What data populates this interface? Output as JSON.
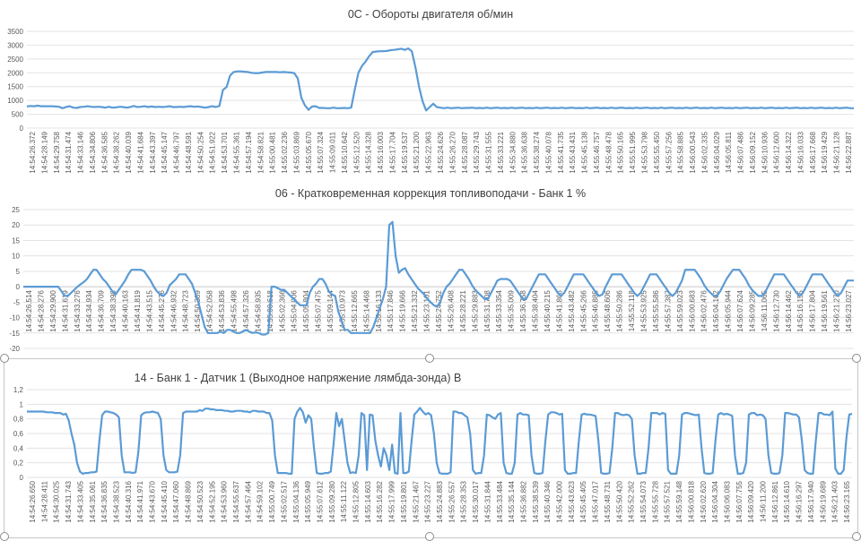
{
  "chart_data": [
    {
      "type": "line",
      "title": "0C - Обороты двигателя об/мин",
      "xlabel": "",
      "ylabel": "",
      "ylim": [
        0,
        3500
      ],
      "yticks": [
        0,
        500,
        1000,
        1500,
        2000,
        2500,
        3000,
        3500
      ],
      "grid": true,
      "color": "#5b9bd5",
      "x_tick_labels": [
        "14:54:26.372",
        "14:54:28.149",
        "14:54:29.758",
        "14:54:31.474",
        "14:54:33.146",
        "14:54:34.806",
        "14:54:36.585",
        "14:54:38.262",
        "14:54:40.039",
        "14:54:41.684",
        "14:54:43.397",
        "14:54:45.147",
        "14:54:46.797",
        "14:54:48.591",
        "14:54:50.254",
        "14:54:51.922",
        "14:54:53.701",
        "14:54:55.361",
        "14:54:57.194",
        "14:54:58.821",
        "14:55:00.481",
        "14:55:02.236",
        "14:55:03.869",
        "14:55:05.670",
        "14:55:07.324",
        "14:55:09.011",
        "14:55:10.642",
        "14:55:12.520",
        "14:55:14.328",
        "14:55:16.003",
        "14:55:17.704",
        "14:55:19.537",
        "14:55:21.200",
        "14:55:22.963",
        "14:55:24.626",
        "14:55:26.270",
        "14:55:28.087",
        "14:55:29.743",
        "14:55:31.555",
        "14:55:33.221",
        "14:55:34.880",
        "14:55:36.638",
        "14:55:38.274",
        "14:55:40.078",
        "14:55:41.735",
        "14:55:43.431",
        "14:55:45.138",
        "14:55:46.757",
        "14:55:48.478",
        "14:55:50.165",
        "14:55:51.995",
        "14:55:53.798",
        "14:55:55.450",
        "14:55:57.256",
        "14:55:58.885",
        "14:56:00.543",
        "14:56:02.335",
        "14:56:04.029",
        "14:56:05.811",
        "14:56:07.486",
        "14:56:09.152",
        "14:56:10.936",
        "14:56:12.600",
        "14:56:14.322",
        "14:56:16.033",
        "14:56:17.668",
        "14:56:19.429",
        "14:56:21.128",
        "14:56:22.887"
      ],
      "values": [
        780,
        800,
        790,
        810,
        790,
        790,
        790,
        790,
        780,
        770,
        720,
        760,
        790,
        740,
        730,
        760,
        770,
        790,
        770,
        760,
        770,
        760,
        740,
        770,
        740,
        750,
        770,
        760,
        740,
        760,
        800,
        760,
        770,
        790,
        760,
        780,
        760,
        770,
        760,
        770,
        790,
        760,
        760,
        770,
        760,
        780,
        790,
        770,
        780,
        760,
        740,
        760,
        790,
        760,
        800,
        1380,
        1480,
        1900,
        2030,
        2050,
        2050,
        2040,
        2030,
        2000,
        1990,
        1990,
        2010,
        2030,
        2030,
        2030,
        2030,
        2020,
        2030,
        2020,
        2010,
        1990,
        1800,
        1100,
        820,
        660,
        780,
        790,
        730,
        730,
        720,
        720,
        740,
        720,
        720,
        730,
        720,
        740,
        1400,
        2000,
        2250,
        2400,
        2600,
        2750,
        2770,
        2780,
        2780,
        2790,
        2820,
        2830,
        2850,
        2870,
        2830,
        2880,
        2780,
        2200,
        1500,
        980,
        640,
        760,
        880,
        760,
        740,
        720,
        740,
        720,
        730,
        740,
        720,
        730,
        730,
        740,
        720,
        730,
        720,
        740,
        720,
        730,
        740,
        720,
        730,
        720,
        740,
        720,
        730,
        740,
        720,
        730,
        720,
        740,
        720,
        730,
        740,
        720,
        730,
        720,
        740,
        720,
        730,
        740,
        720,
        730,
        720,
        740,
        720,
        730,
        740,
        720,
        730,
        720,
        740,
        720,
        730,
        740,
        720,
        730,
        720,
        740,
        720,
        730,
        740,
        720,
        730,
        720,
        740,
        720,
        730,
        740,
        720,
        730,
        720,
        740,
        720,
        730,
        740,
        720,
        730,
        720,
        740,
        720,
        730,
        740,
        720,
        730,
        720,
        740,
        720,
        730,
        740,
        720,
        730,
        720,
        740,
        720,
        730,
        740,
        720,
        730,
        720,
        740,
        720,
        730,
        740,
        720,
        730,
        720,
        740,
        720,
        730,
        740,
        720,
        730,
        720,
        740,
        720,
        730,
        740,
        720,
        720
      ]
    },
    {
      "type": "line",
      "title": "06 - Кратковременная коррекция топливоподачи - Банк 1 %",
      "xlabel": "",
      "ylabel": "",
      "ylim": [
        -20,
        25
      ],
      "yticks": [
        -20,
        -15,
        -10,
        -5,
        0,
        5,
        10,
        15,
        20,
        25
      ],
      "grid": true,
      "color": "#5b9bd5",
      "x_tick_labels": [
        "14:54:26.514",
        "14:54:28.276",
        "14:54:29.900",
        "14:54:31.619",
        "14:54:33.276",
        "14:54:34.934",
        "14:54:36.709",
        "14:54:38.398",
        "14:54:40.163",
        "14:54:41.819",
        "14:54:43.515",
        "14:54:45.276",
        "14:54:46.932",
        "14:54:48.723",
        "14:54:50.389",
        "14:54:52.058",
        "14:54:53.836",
        "14:54:55.498",
        "14:54:57.326",
        "14:54:58.935",
        "14:55:00.618",
        "14:55:02.366",
        "14:55:04.006",
        "14:55:05.804",
        "14:55:07.475",
        "14:55:09.144",
        "14:55:10.973",
        "14:55:12.665",
        "14:55:14.468",
        "14:55:16.133",
        "14:55:17.846",
        "14:55:19.666",
        "14:55:21.332",
        "14:55:23.101",
        "14:55:24.752",
        "14:55:26.408",
        "14:55:28.221",
        "14:55:29.883",
        "14:55:31.708",
        "14:55:33.354",
        "14:55:35.009",
        "14:55:36.758",
        "14:55:38.404",
        "14:55:40.215",
        "14:55:41.866",
        "14:55:43.482",
        "14:55:45.266",
        "14:55:46.885",
        "14:55:48.606",
        "14:55:50.286",
        "14:55:52.118",
        "14:55:53.925",
        "14:55:55.586",
        "14:55:57.387",
        "14:55:59.023",
        "14:56:00.683",
        "14:56:02.476",
        "14:56:04.162",
        "14:56:05.944",
        "14:56:07.624",
        "14:56:09.285",
        "14:56:11.065",
        "14:56:12.730",
        "14:56:14.462",
        "14:56:16.155",
        "14:56:17.804",
        "14:56:19.561",
        "14:56:21.270",
        "14:56:23.027"
      ],
      "values": [
        0,
        0,
        0,
        0,
        0,
        0,
        0,
        0,
        0,
        0,
        0,
        0,
        -1.5,
        -3,
        -3,
        -2,
        -1,
        0,
        0.8,
        1.5,
        2.5,
        4,
        5.5,
        5.5,
        4,
        2.5,
        1.5,
        0,
        -1.5,
        -2.5,
        -1,
        0.5,
        2,
        4,
        5.5,
        5.5,
        5.5,
        5.5,
        5,
        3.5,
        2,
        0,
        -1.5,
        -2.5,
        -3,
        -2,
        0.5,
        1.5,
        2.5,
        4,
        4,
        4,
        2.5,
        1,
        -2,
        -5,
        -9,
        -13,
        -15,
        -15,
        -15,
        -15,
        -14.5,
        -15,
        -14,
        -14,
        -14.5,
        -15,
        -15,
        -14.5,
        -14,
        -14.5,
        -15,
        -14.8,
        -15,
        -15.5,
        -15.5,
        -15,
        0,
        0,
        -0.5,
        -1,
        -1,
        -2,
        -3,
        -4,
        -5,
        -6,
        -6,
        -6,
        -2,
        0,
        1,
        2.5,
        2.5,
        1,
        -1.5,
        -2.5,
        -3,
        -8,
        -11,
        -14,
        -14,
        -15,
        -15,
        -15,
        -15,
        -15,
        -15,
        -15,
        -13,
        -10,
        -7,
        -4,
        0,
        20,
        21,
        10,
        4.5,
        5.5,
        6,
        4,
        2.5,
        1,
        -0.5,
        -1.5,
        -2.5,
        -4,
        -5,
        -6,
        -6.5,
        -5,
        -2,
        0,
        1,
        2.5,
        4,
        5.5,
        5.5,
        4,
        2.5,
        0.5,
        -1,
        -2,
        -3,
        -4,
        -4,
        -2,
        0,
        2,
        2.5,
        2.5,
        2.5,
        2,
        0.5,
        -1,
        -2.5,
        -4,
        -4,
        -2,
        0,
        2,
        4,
        4,
        4,
        2.5,
        1,
        -0.5,
        -2,
        -3,
        -2,
        0,
        2,
        4,
        4,
        4,
        4,
        2.5,
        1,
        -0.5,
        -2,
        -3,
        -2.5,
        0,
        2,
        4,
        4,
        4,
        4,
        2.5,
        1,
        -0.5,
        -2,
        -3,
        -2,
        0,
        2,
        4,
        4,
        4,
        2.5,
        1,
        -0.5,
        -2,
        -3,
        -2,
        0,
        2,
        5.5,
        5.5,
        5.5,
        5.5,
        4,
        2.5,
        0.5,
        -1,
        -2,
        -3,
        -3,
        -1.5,
        0.5,
        2.5,
        4,
        5.5,
        5.5,
        5.5,
        4,
        2.5,
        0.5,
        -1,
        -2,
        -3,
        -3,
        -2,
        0,
        2,
        4,
        4,
        4,
        4,
        2.5,
        1,
        -0.5,
        -2,
        -3,
        -2,
        0,
        2,
        4,
        4,
        4,
        4,
        2.5,
        1,
        -0.5,
        -2,
        -3,
        -2,
        0,
        2,
        2,
        2
      ]
    },
    {
      "type": "line",
      "title": "14 - Банк 1 - Датчик 1 (Выходное напряжение лямбда-зонда) В",
      "xlabel": "",
      "ylabel": "",
      "ylim": [
        0,
        1.2
      ],
      "yticks": [
        "0",
        "0,2",
        "0,4",
        "0,6",
        "0,8",
        "1",
        "1,2"
      ],
      "grid": true,
      "color": "#5b9bd5",
      "x_tick_labels": [
        "14:54:26.650",
        "14:54:28.411",
        "14:54:30.025",
        "14:54:31.743",
        "14:54:33.405",
        "14:54:35.061",
        "14:54:36.835",
        "14:54:38.523",
        "14:54:40.316",
        "14:54:41.971",
        "14:54:43.670",
        "14:54:45.410",
        "14:54:47.060",
        "14:54:48.869",
        "14:54:50.523",
        "14:54:52.195",
        "14:54:53.960",
        "14:54:55.637",
        "14:54:57.464",
        "14:54:59.102",
        "14:55:00.749",
        "14:55:02.517",
        "14:55:04.136",
        "14:55:05.949",
        "14:55:07.612",
        "14:55:09.280",
        "14:55:11.122",
        "14:55:12.805",
        "14:55:14.603",
        "14:55:16.282",
        "14:55:17.999",
        "14:55:19.801",
        "14:55:21.467",
        "14:55:23.227",
        "14:55:24.883",
        "14:55:26.557",
        "14:55:28.353",
        "14:55:30.017",
        "14:55:31.844",
        "14:55:33.484",
        "14:55:35.144",
        "14:55:36.882",
        "14:55:38.539",
        "14:55:40.346",
        "14:55:42.000",
        "14:55:43.623",
        "14:55:45.405",
        "14:55:47.017",
        "14:55:48.731",
        "14:55:50.420",
        "14:55:52.262",
        "14:55:54.073",
        "14:55:55.728",
        "14:55:57.521",
        "14:55:59.148",
        "14:56:00.818",
        "14:56:02.620",
        "14:56:04.304",
        "14:56:06.083",
        "14:56:07.755",
        "14:56:09.420",
        "14:56:11.200",
        "14:56:12.861",
        "14:56:14.610",
        "14:56:16.297",
        "14:56:17.940",
        "14:56:19.689",
        "14:56:21.403",
        "14:56:23.165"
      ],
      "values": [
        0.9,
        0.9,
        0.9,
        0.9,
        0.9,
        0.9,
        0.9,
        0.89,
        0.89,
        0.89,
        0.88,
        0.88,
        0.88,
        0.86,
        0.87,
        0.78,
        0.6,
        0.45,
        0.2,
        0.08,
        0.05,
        0.06,
        0.06,
        0.07,
        0.07,
        0.08,
        0.5,
        0.85,
        0.9,
        0.9,
        0.89,
        0.88,
        0.86,
        0.82,
        0.3,
        0.07,
        0.07,
        0.07,
        0.06,
        0.07,
        0.35,
        0.85,
        0.88,
        0.89,
        0.89,
        0.9,
        0.89,
        0.88,
        0.8,
        0.3,
        0.1,
        0.07,
        0.07,
        0.07,
        0.08,
        0.3,
        0.88,
        0.9,
        0.9,
        0.9,
        0.9,
        0.9,
        0.92,
        0.91,
        0.94,
        0.94,
        0.93,
        0.93,
        0.92,
        0.92,
        0.92,
        0.91,
        0.91,
        0.9,
        0.9,
        0.91,
        0.91,
        0.91,
        0.9,
        0.9,
        0.89,
        0.91,
        0.91,
        0.9,
        0.9,
        0.9,
        0.88,
        0.88,
        0.78,
        0.3,
        0.06,
        0.06,
        0.06,
        0.06,
        0.05,
        0.05,
        0.8,
        0.9,
        0.95,
        0.89,
        0.75,
        0.85,
        0.8,
        0.4,
        0.06,
        0.05,
        0.05,
        0.06,
        0.06,
        0.08,
        0.45,
        0.88,
        0.7,
        0.8,
        0.5,
        0.2,
        0.06,
        0.07,
        0.06,
        0.3,
        0.88,
        0.85,
        0.1,
        0.86,
        0.85,
        0.5,
        0.3,
        0.15,
        0.4,
        0.3,
        0.1,
        0.45,
        0.06,
        0.05,
        0.88,
        0.06,
        0.06,
        0.08,
        0.5,
        0.86,
        0.9,
        0.95,
        0.9,
        0.86,
        0.88,
        0.85,
        0.6,
        0.2,
        0.06,
        0.05,
        0.05,
        0.05,
        0.07,
        0.9,
        0.9,
        0.88,
        0.88,
        0.85,
        0.82,
        0.6,
        0.1,
        0.05,
        0.06,
        0.06,
        0.3,
        0.86,
        0.85,
        0.82,
        0.8,
        0.86,
        0.88,
        0.2,
        0.06,
        0.05,
        0.05,
        0.2,
        0.86,
        0.88,
        0.86,
        0.86,
        0.85,
        0.3,
        0.06,
        0.05,
        0.05,
        0.06,
        0.5,
        0.86,
        0.89,
        0.89,
        0.88,
        0.86,
        0.87,
        0.1,
        0.05,
        0.05,
        0.06,
        0.06,
        0.5,
        0.86,
        0.87,
        0.86,
        0.86,
        0.85,
        0.84,
        0.5,
        0.06,
        0.05,
        0.05,
        0.06,
        0.4,
        0.88,
        0.88,
        0.86,
        0.85,
        0.86,
        0.85,
        0.8,
        0.3,
        0.05,
        0.05,
        0.06,
        0.06,
        0.4,
        0.88,
        0.88,
        0.88,
        0.86,
        0.88,
        0.87,
        0.1,
        0.05,
        0.05,
        0.05,
        0.3,
        0.86,
        0.88,
        0.88,
        0.87,
        0.86,
        0.85,
        0.86,
        0.4,
        0.06,
        0.05,
        0.05,
        0.06,
        0.5,
        0.86,
        0.88,
        0.86,
        0.87,
        0.86,
        0.84,
        0.3,
        0.05,
        0.05,
        0.06,
        0.2,
        0.86,
        0.88,
        0.88,
        0.85,
        0.86,
        0.85,
        0.8,
        0.3,
        0.06,
        0.05,
        0.05,
        0.06,
        0.3,
        0.88,
        0.88,
        0.87,
        0.86,
        0.86,
        0.82,
        0.5,
        0.1,
        0.06,
        0.05,
        0.05,
        0.5,
        0.88,
        0.88,
        0.86,
        0.86,
        0.85,
        0.9,
        0.12,
        0.05,
        0.05,
        0.1,
        0.55,
        0.86,
        0.87
      ]
    }
  ]
}
